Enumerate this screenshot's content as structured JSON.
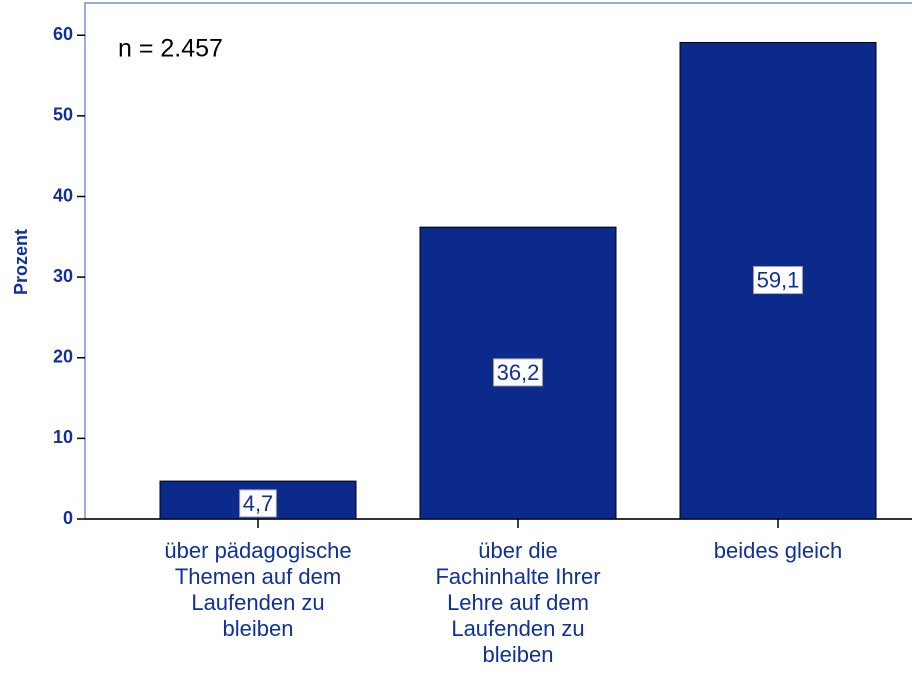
{
  "chart_data": {
    "type": "bar",
    "y_label": "Prozent",
    "annotation": "n = 2.457",
    "categories": [
      "über pädagogische Themen auf dem Laufenden zu bleiben",
      "über die Fachinhalte Ihrer Lehre auf dem Laufenden zu bleiben",
      "beides gleich"
    ],
    "values": [
      4.7,
      36.2,
      59.1
    ],
    "value_labels": [
      "4,7",
      "36,2",
      "59,1"
    ],
    "color": "#0b2a8c",
    "ylim": [
      0,
      64
    ],
    "yticks": [
      0,
      10,
      20,
      30,
      40,
      50,
      60
    ]
  }
}
